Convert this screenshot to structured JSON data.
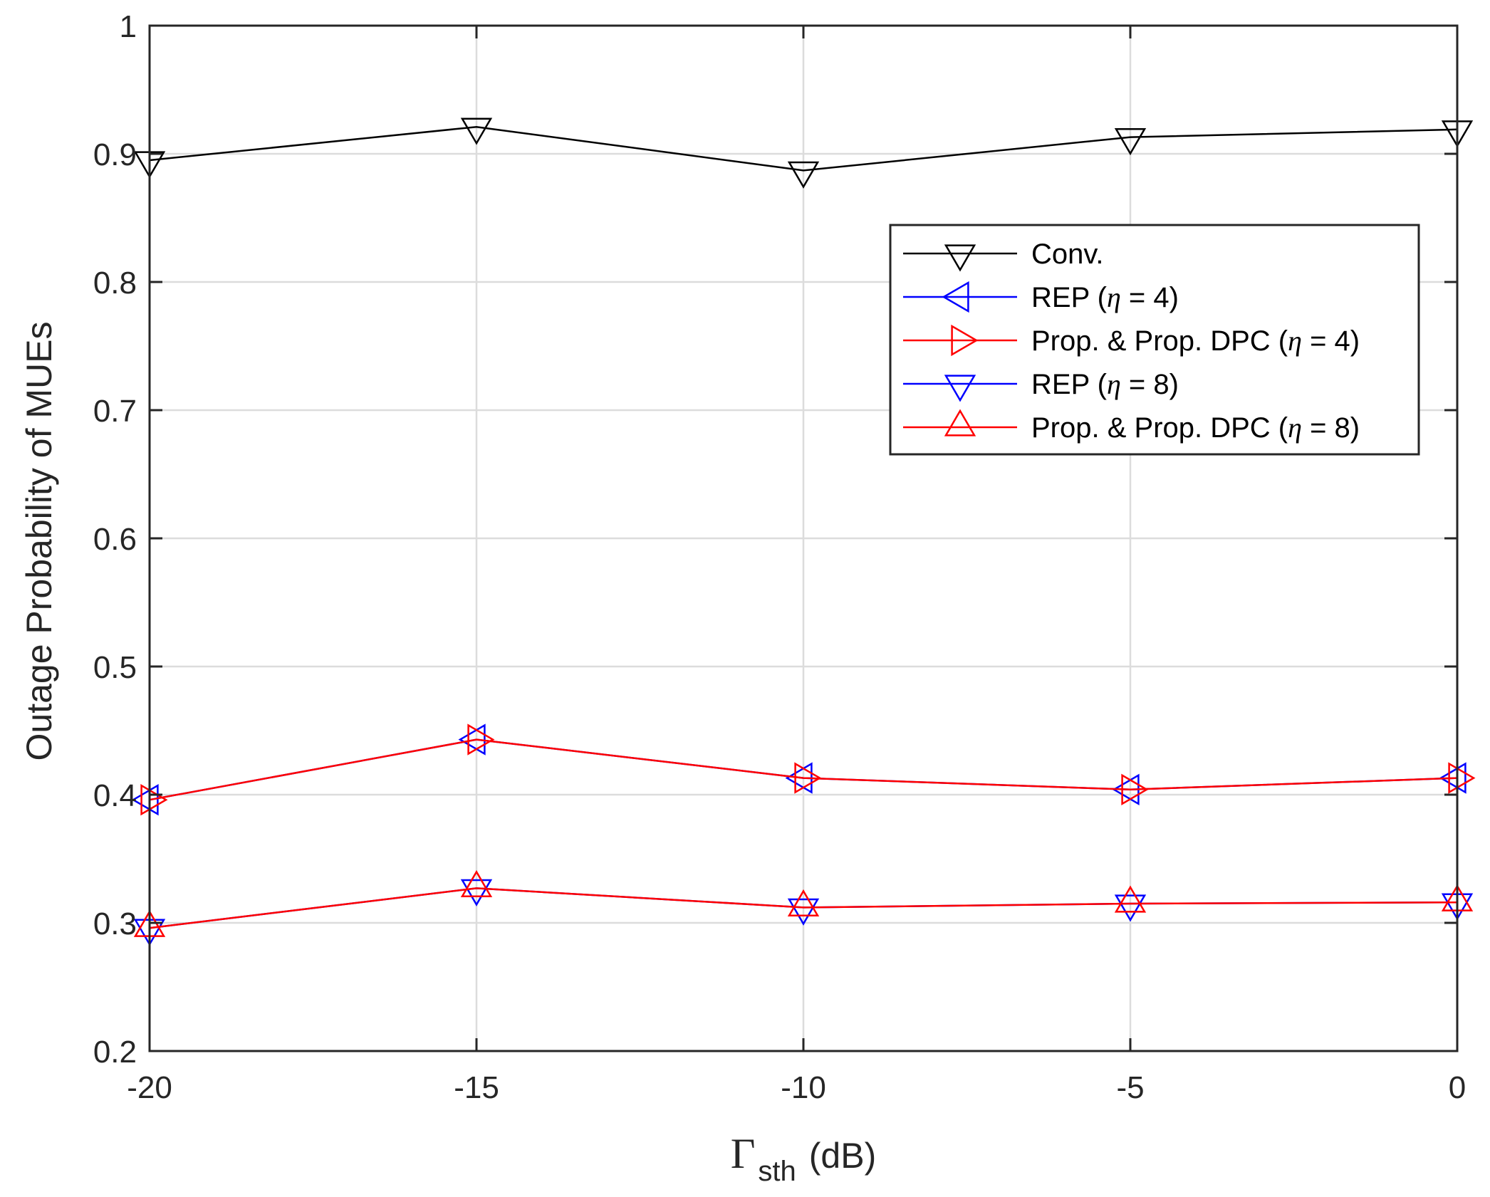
{
  "chart_data": {
    "type": "line",
    "title": "",
    "xlabel": {
      "symbol": "Γ",
      "subscript": "sth",
      "unit": "(dB)"
    },
    "ylabel": "Outage Probability of MUEs",
    "x": [
      -20,
      -15,
      -10,
      -5,
      0
    ],
    "xlim": [
      -20,
      0
    ],
    "ylim": [
      0.2,
      1
    ],
    "xticks": [
      -20,
      -15,
      -10,
      -5,
      0
    ],
    "yticks": [
      0.2,
      0.3,
      0.4,
      0.5,
      0.6,
      0.7,
      0.8,
      0.9,
      1
    ],
    "xtick_labels": [
      "-20",
      "-15",
      "-10",
      "-5",
      "0"
    ],
    "ytick_labels": [
      "0.2",
      "0.3",
      "0.4",
      "0.5",
      "0.6",
      "0.7",
      "0.8",
      "0.9",
      "1"
    ],
    "grid": true,
    "legend_position": "upper-right",
    "series": [
      {
        "name": "Conv.",
        "legend": {
          "text": "Conv.",
          "greek": "",
          "suffix": ""
        },
        "color": "#000000",
        "marker": "triangle-down",
        "values": [
          0.895,
          0.921,
          0.887,
          0.913,
          0.919
        ]
      },
      {
        "name": "REP (η = 4)",
        "legend": {
          "text": "REP (",
          "greek": "η",
          "suffix": " = 4)"
        },
        "color": "#0000ff",
        "marker": "triangle-left",
        "values": [
          0.396,
          0.443,
          0.413,
          0.404,
          0.413
        ]
      },
      {
        "name": "Prop. & Prop. DPC (η = 4)",
        "legend": {
          "text": "Prop. & Prop. DPC (",
          "greek": "η",
          "suffix": " = 4)"
        },
        "color": "#ff0000",
        "marker": "triangle-right",
        "values": [
          0.396,
          0.443,
          0.413,
          0.404,
          0.413
        ]
      },
      {
        "name": "REP (η = 8)",
        "legend": {
          "text": "REP (",
          "greek": "η",
          "suffix": " = 8)"
        },
        "color": "#0000ff",
        "marker": "triangle-down",
        "values": [
          0.296,
          0.327,
          0.312,
          0.315,
          0.316
        ]
      },
      {
        "name": "Prop. & Prop. DPC (η = 8)",
        "legend": {
          "text": "Prop. & Prop. DPC (",
          "greek": "η",
          "suffix": " = 8)"
        },
        "color": "#ff0000",
        "marker": "triangle-up",
        "values": [
          0.296,
          0.327,
          0.312,
          0.315,
          0.316
        ]
      }
    ]
  }
}
